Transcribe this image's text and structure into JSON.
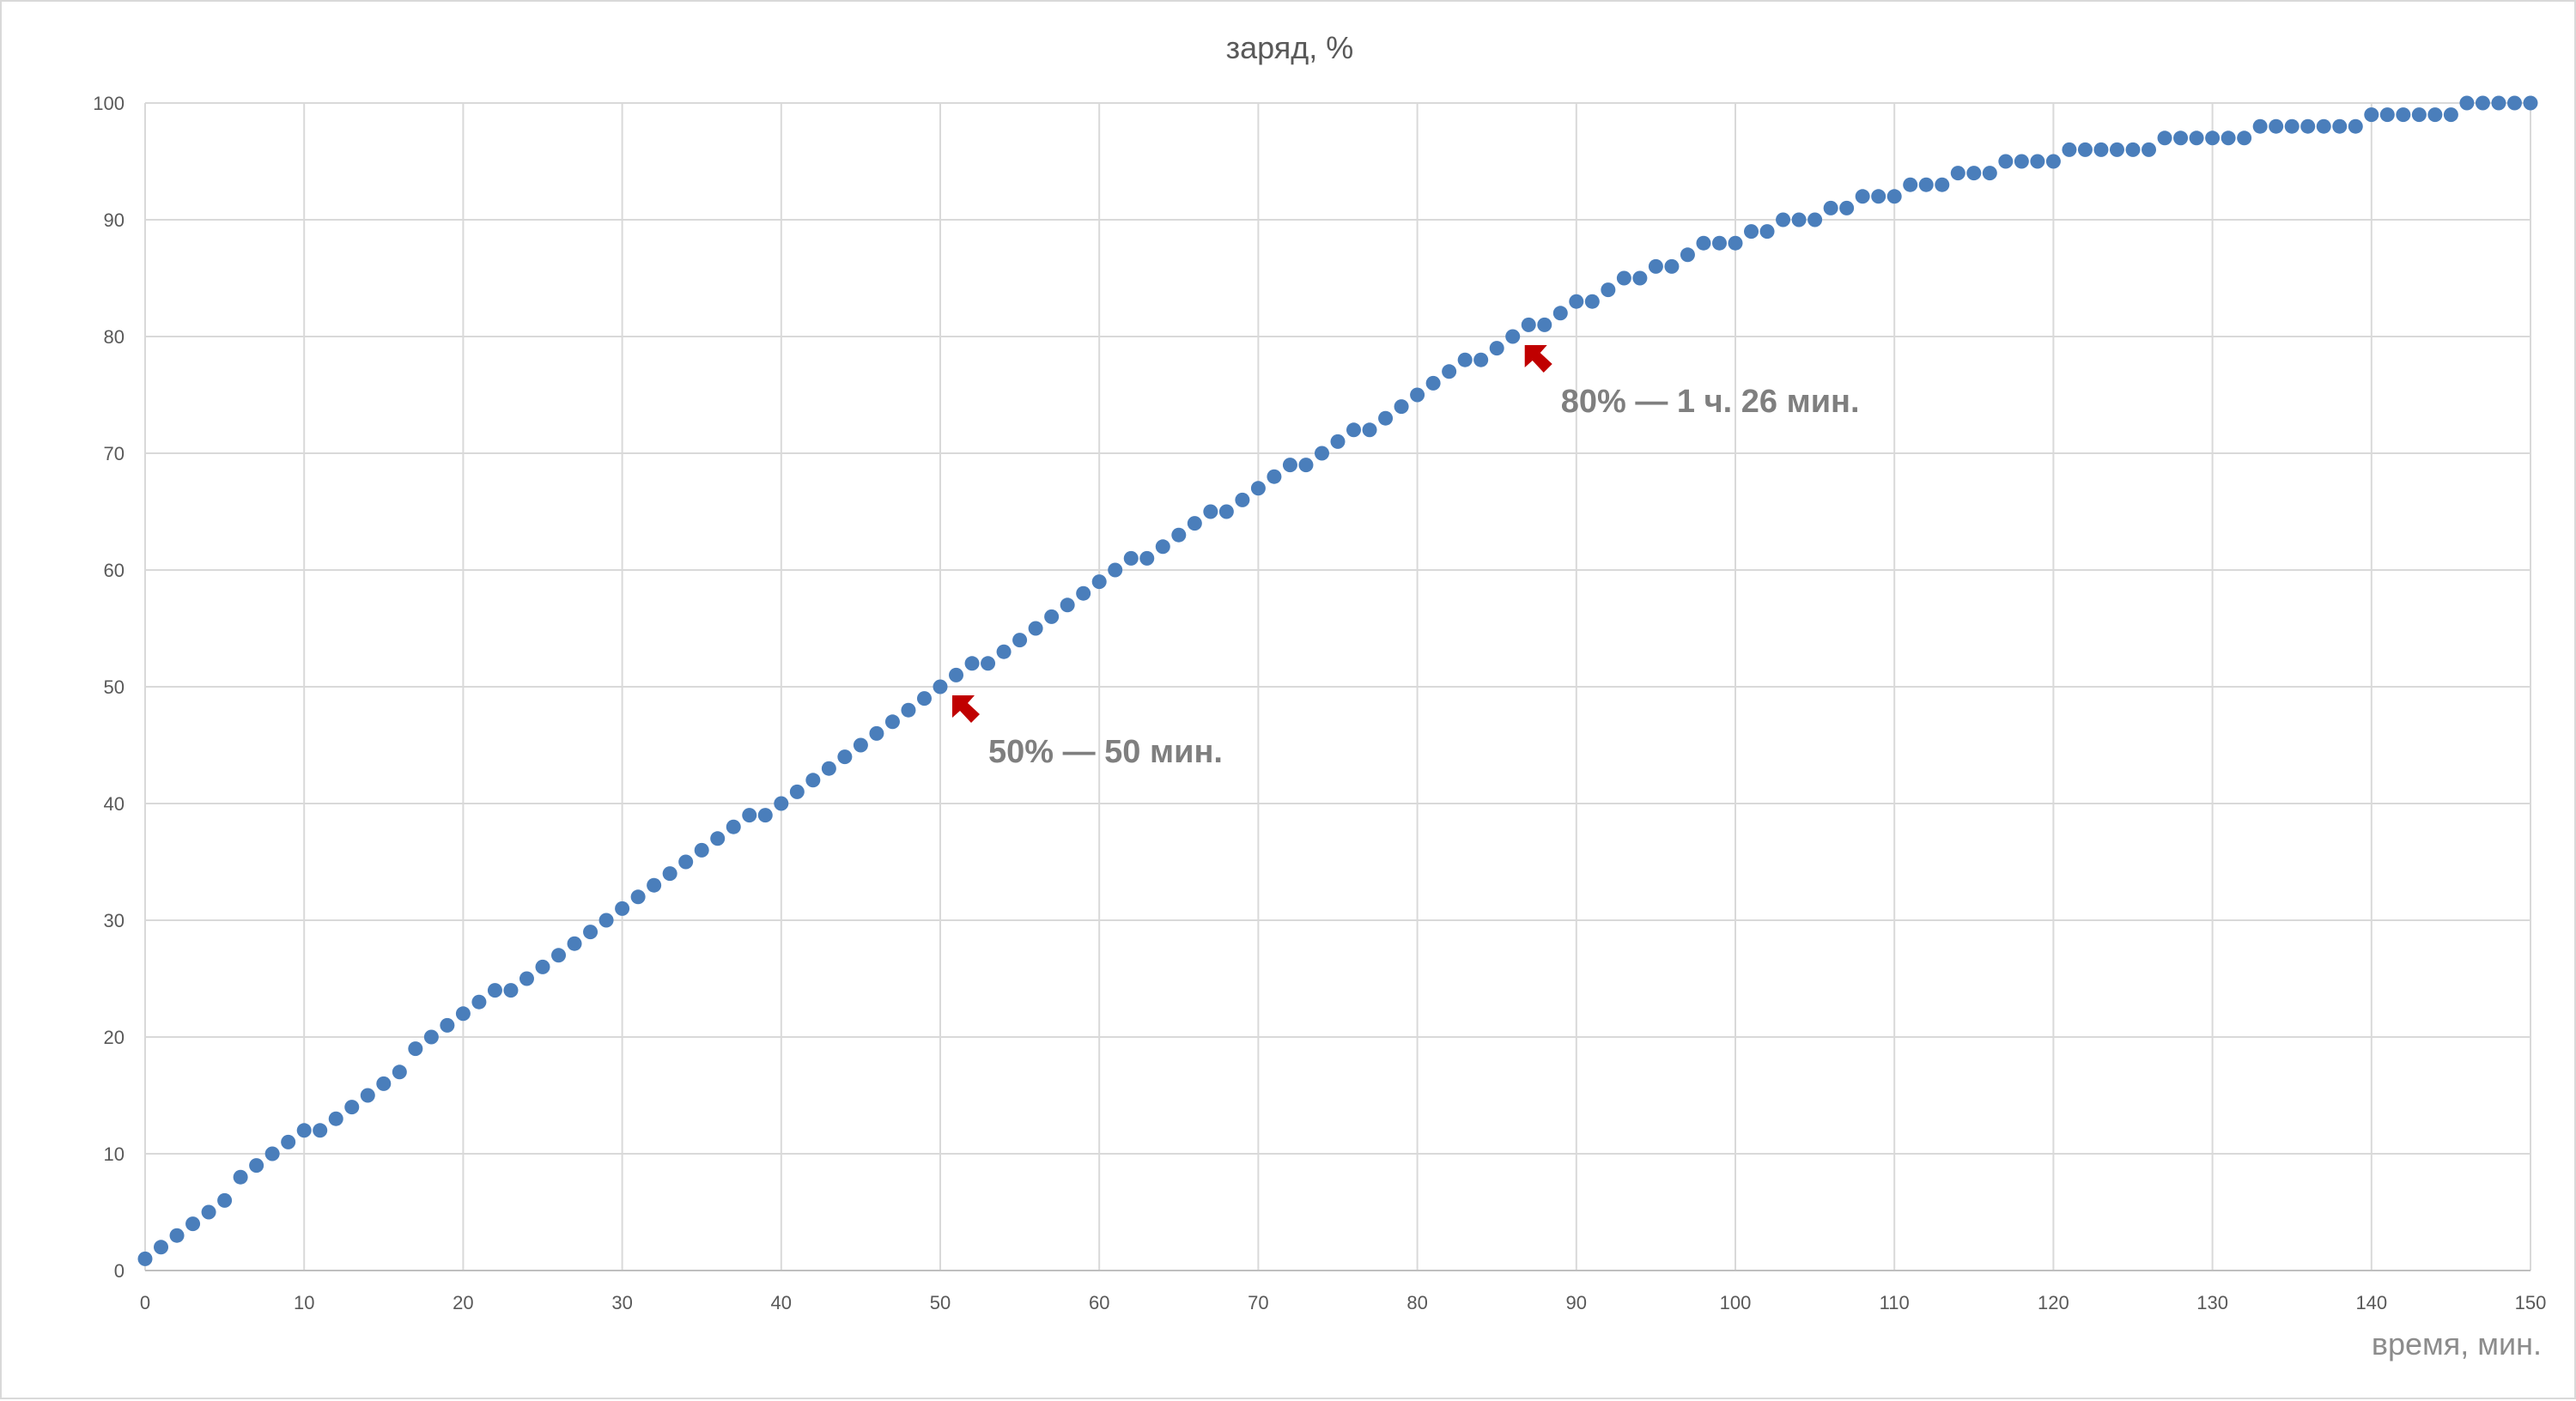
{
  "chart_data": {
    "type": "scatter",
    "title": "заряд, %",
    "xlabel": "время, мин.",
    "ylabel": "",
    "xlim": [
      0,
      150
    ],
    "ylim": [
      0,
      100
    ],
    "x_ticks": [
      "0",
      "10",
      "20",
      "30",
      "40",
      "50",
      "60",
      "70",
      "80",
      "90",
      "100",
      "110",
      "120",
      "130",
      "140",
      "150"
    ],
    "y_ticks": [
      "0",
      "10",
      "20",
      "30",
      "40",
      "50",
      "60",
      "70",
      "80",
      "90",
      "100"
    ],
    "grid": true,
    "legend": "none",
    "series": [
      {
        "color": "#4a7ebb",
        "x": [
          0,
          1,
          2,
          3,
          4,
          5,
          6,
          7,
          8,
          9,
          10,
          11,
          12,
          13,
          14,
          15,
          16,
          17,
          18,
          19,
          20,
          21,
          22,
          23,
          24,
          25,
          26,
          27,
          28,
          29,
          30,
          31,
          32,
          33,
          34,
          35,
          36,
          37,
          38,
          39,
          40,
          41,
          42,
          43,
          44,
          45,
          46,
          47,
          48,
          49,
          50,
          51,
          52,
          53,
          54,
          55,
          56,
          57,
          58,
          59,
          60,
          61,
          62,
          63,
          64,
          65,
          66,
          67,
          68,
          69,
          70,
          71,
          72,
          73,
          74,
          75,
          76,
          77,
          78,
          79,
          80,
          81,
          82,
          83,
          84,
          85,
          86,
          87,
          88,
          89,
          90,
          91,
          92,
          93,
          94,
          95,
          96,
          97,
          98,
          99,
          100,
          101,
          102,
          103,
          104,
          105,
          106,
          107,
          108,
          109,
          110,
          111,
          112,
          113,
          114,
          115,
          116,
          117,
          118,
          119,
          120,
          121,
          122,
          123,
          124,
          125,
          126,
          127,
          128,
          129,
          130,
          131,
          132,
          133,
          134,
          135,
          136,
          137,
          138,
          139,
          140,
          141,
          142,
          143,
          144,
          145,
          146,
          147,
          148,
          149,
          150
        ],
        "y": [
          1,
          2,
          3,
          4,
          5,
          6,
          8,
          9,
          10,
          11,
          12,
          12,
          13,
          14,
          15,
          16,
          17,
          19,
          20,
          21,
          22,
          23,
          24,
          24,
          25,
          26,
          27,
          28,
          29,
          30,
          31,
          32,
          33,
          34,
          35,
          36,
          37,
          38,
          39,
          39,
          40,
          41,
          42,
          43,
          44,
          45,
          46,
          47,
          48,
          49,
          50,
          51,
          52,
          52,
          53,
          54,
          55,
          56,
          57,
          58,
          59,
          60,
          61,
          61,
          62,
          63,
          64,
          65,
          65,
          66,
          67,
          68,
          69,
          69,
          70,
          71,
          72,
          72,
          73,
          74,
          75,
          76,
          77,
          78,
          78,
          79,
          80,
          81,
          81,
          82,
          83,
          83,
          84,
          85,
          85,
          86,
          86,
          87,
          88,
          88,
          88,
          89,
          89,
          90,
          90,
          90,
          91,
          91,
          92,
          92,
          92,
          93,
          93,
          93,
          94,
          94,
          94,
          95,
          95,
          95,
          95,
          96,
          96,
          96,
          96,
          96,
          96,
          97,
          97,
          97,
          97,
          97,
          97,
          98,
          98,
          98,
          98,
          98,
          98,
          98,
          99,
          99,
          99,
          99,
          99,
          99,
          100,
          100,
          100,
          100,
          100
        ]
      }
    ],
    "annotations": [
      {
        "text": "50% — 50 мин.",
        "x": 50,
        "y": 50,
        "arrow_color": "#c00000"
      },
      {
        "text": "80% — 1 ч. 26 мин.",
        "x": 86,
        "y": 80,
        "arrow_color": "#c00000"
      }
    ]
  }
}
